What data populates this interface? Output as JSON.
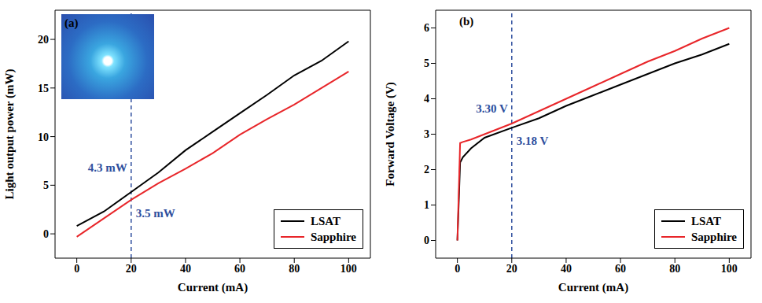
{
  "chart_data": [
    {
      "type": "line",
      "panel": "(a)",
      "xlabel": "Current (mA)",
      "ylabel": "Light output power (mW)",
      "x": [
        0,
        10,
        20,
        30,
        40,
        50,
        60,
        70,
        80,
        90,
        100
      ],
      "series": [
        {
          "name": "LSAT",
          "color": "#000000",
          "values": [
            0.8,
            2.3,
            4.3,
            6.3,
            8.6,
            10.5,
            12.4,
            14.3,
            16.3,
            17.8,
            19.8
          ]
        },
        {
          "name": "Sapphire",
          "color": "#e8262a",
          "values": [
            -0.3,
            1.6,
            3.5,
            5.2,
            6.7,
            8.3,
            10.2,
            11.8,
            13.3,
            15.0,
            16.7
          ]
        }
      ],
      "xlim": [
        -8,
        108
      ],
      "xticks": [
        0,
        20,
        40,
        60,
        80,
        100
      ],
      "ylim": [
        -2.5,
        23
      ],
      "yticks": [
        0,
        5,
        10,
        15,
        20
      ],
      "legend": "lower right",
      "vline": 20,
      "annotations": [
        {
          "text": "4.3 mW",
          "x": 20,
          "y": 4.3
        },
        {
          "text": "3.5 mW",
          "x": 20,
          "y": 3.5
        }
      ]
    },
    {
      "type": "line",
      "panel": "(b)",
      "xlabel": "Current (mA)",
      "ylabel": "Forward Voltage (V)",
      "x": [
        0,
        1,
        2,
        5,
        10,
        20,
        30,
        40,
        50,
        60,
        70,
        80,
        90,
        100
      ],
      "series": [
        {
          "name": "LSAT",
          "color": "#000000",
          "values": [
            0,
            2.2,
            2.35,
            2.6,
            2.9,
            3.18,
            3.45,
            3.8,
            4.1,
            4.4,
            4.7,
            5.0,
            5.25,
            5.55
          ]
        },
        {
          "name": "Sapphire",
          "color": "#e8262a",
          "values": [
            0,
            2.75,
            2.78,
            2.85,
            3.0,
            3.3,
            3.65,
            4.0,
            4.35,
            4.7,
            5.05,
            5.35,
            5.7,
            6.0
          ]
        }
      ],
      "xlim": [
        -8,
        108
      ],
      "xticks": [
        0,
        20,
        40,
        60,
        80,
        100
      ],
      "ylim": [
        -0.5,
        6.5
      ],
      "yticks": [
        0,
        1,
        2,
        3,
        4,
        5,
        6
      ],
      "legend": "lower right",
      "vline": 20,
      "annotations": [
        {
          "text": "3.30 V",
          "x": 20,
          "y": 3.3
        },
        {
          "text": "3.18 V",
          "x": 20,
          "y": 3.18
        }
      ]
    }
  ]
}
